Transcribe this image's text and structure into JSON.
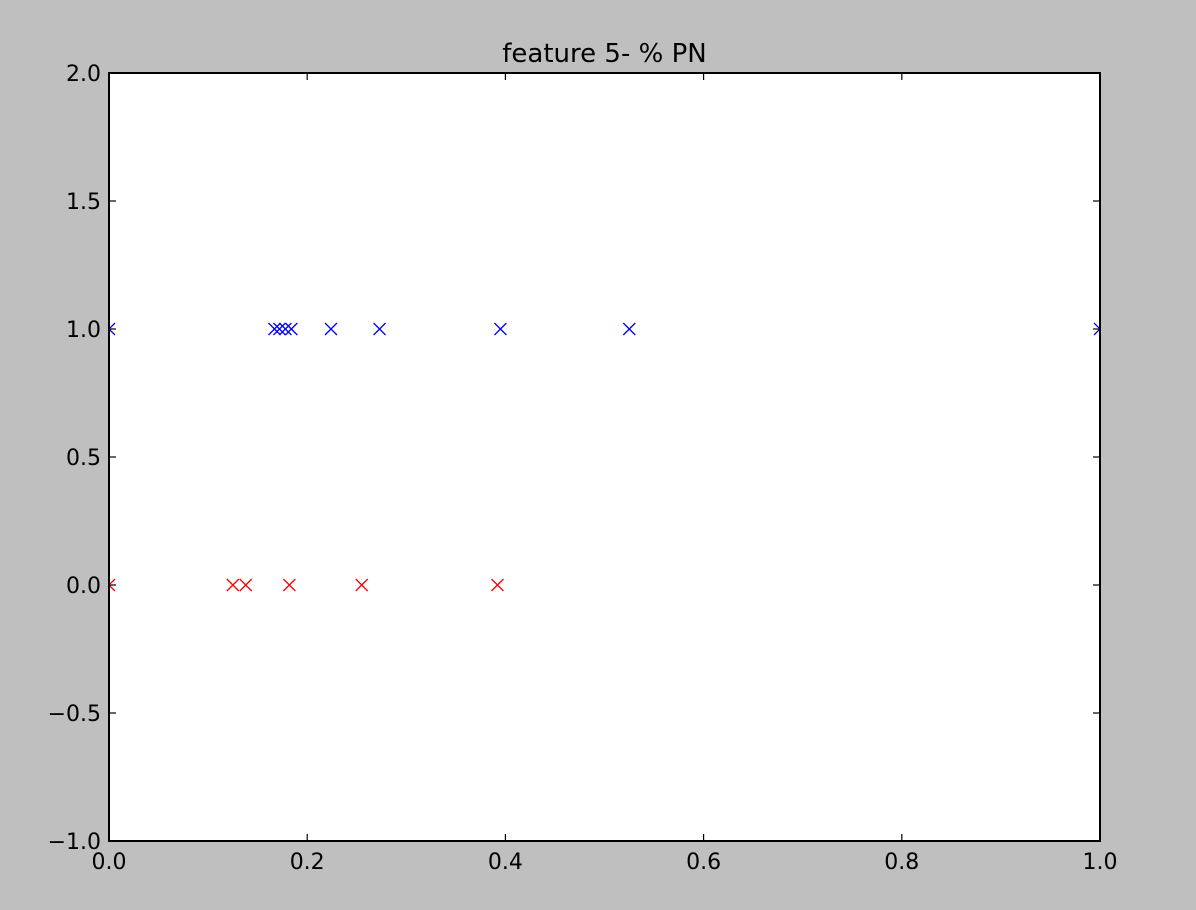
{
  "chart_data": {
    "type": "scatter",
    "title": "feature 5- % PN",
    "xlabel": "",
    "ylabel": "",
    "xlim": [
      0.0,
      1.0
    ],
    "ylim": [
      -1.0,
      2.0
    ],
    "xticks": [
      0.0,
      0.2,
      0.4,
      0.6,
      0.8,
      1.0
    ],
    "xtick_labels": [
      "0.0",
      "0.2",
      "0.4",
      "0.6",
      "0.8",
      "1.0"
    ],
    "yticks": [
      -1.0,
      -0.5,
      0.0,
      0.5,
      1.0,
      1.5,
      2.0
    ],
    "ytick_labels": [
      "−1.0",
      "−0.5",
      "0.0",
      "0.5",
      "1.0",
      "1.5",
      "2.0"
    ],
    "grid": false,
    "marker": "x",
    "series": [
      {
        "color": "#0000ff",
        "points": [
          {
            "x": 0.0,
            "y": 1.0
          },
          {
            "x": 0.167,
            "y": 1.0
          },
          {
            "x": 0.172,
            "y": 1.0
          },
          {
            "x": 0.178,
            "y": 1.0
          },
          {
            "x": 0.184,
            "y": 1.0
          },
          {
            "x": 0.224,
            "y": 1.0
          },
          {
            "x": 0.273,
            "y": 1.0
          },
          {
            "x": 0.395,
            "y": 1.0
          },
          {
            "x": 0.525,
            "y": 1.0
          },
          {
            "x": 1.0,
            "y": 1.0
          }
        ]
      },
      {
        "color": "#ff0000",
        "points": [
          {
            "x": 0.0,
            "y": 0.0
          },
          {
            "x": 0.125,
            "y": 0.0
          },
          {
            "x": 0.138,
            "y": 0.0
          },
          {
            "x": 0.182,
            "y": 0.0
          },
          {
            "x": 0.255,
            "y": 0.0
          },
          {
            "x": 0.392,
            "y": 0.0
          }
        ]
      }
    ]
  },
  "colors": {
    "figure_background": "#bfbfbf",
    "axes_background": "#ffffff",
    "axes_edge": "#000000"
  }
}
